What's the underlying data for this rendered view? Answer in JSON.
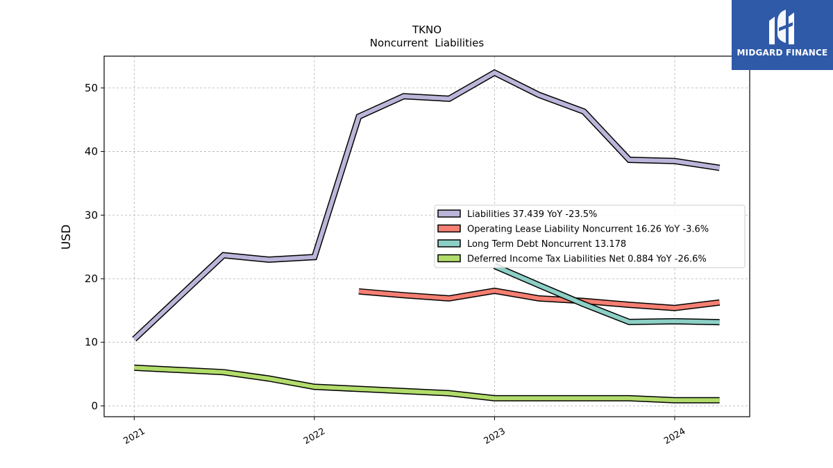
{
  "chart_data": {
    "type": "line",
    "title": "TKNO",
    "subtitle": "Noncurrent  Liabilities",
    "ylabel": "USD",
    "xlabel": "",
    "xlim": [
      "2020-11-01",
      "2024-06-01"
    ],
    "ylim": [
      -1.7,
      55
    ],
    "yticks": [
      0,
      10,
      20,
      30,
      40,
      50
    ],
    "xticks": [
      {
        "date": "2021-01-01",
        "label": "2021"
      },
      {
        "date": "2022-01-01",
        "label": "2022"
      },
      {
        "date": "2023-01-01",
        "label": "2023"
      },
      {
        "date": "2024-01-01",
        "label": "2024"
      }
    ],
    "grid": true,
    "legend_position": "center-right",
    "series": [
      {
        "name": "Liabilities",
        "legend": "Liabilities  37.439 YoY -23.5%",
        "color": "#bcb5d9",
        "points": [
          [
            "2021-01-01",
            10.5
          ],
          [
            "2021-07-01",
            23.7
          ],
          [
            "2021-10-01",
            23.0
          ],
          [
            "2022-01-01",
            23.4
          ],
          [
            "2022-04-01",
            45.5
          ],
          [
            "2022-07-01",
            48.7
          ],
          [
            "2022-10-01",
            48.3
          ],
          [
            "2023-01-01",
            52.4
          ],
          [
            "2023-04-01",
            48.9
          ],
          [
            "2023-07-01",
            46.3
          ],
          [
            "2023-10-01",
            38.7
          ],
          [
            "2024-01-01",
            38.5
          ],
          [
            "2024-04-01",
            37.439
          ]
        ]
      },
      {
        "name": "Operating Lease Liability Noncurrent",
        "legend": "Operating Lease Liability Noncurrent  16.26 YoY -3.6%",
        "color": "#f47f72",
        "points": [
          [
            "2022-04-01",
            18.0
          ],
          [
            "2022-07-01",
            17.4
          ],
          [
            "2022-10-01",
            16.9
          ],
          [
            "2023-01-01",
            18.1
          ],
          [
            "2023-04-01",
            16.9
          ],
          [
            "2023-07-01",
            16.5
          ],
          [
            "2023-10-01",
            15.9
          ],
          [
            "2024-01-01",
            15.4
          ],
          [
            "2024-04-01",
            16.26
          ]
        ]
      },
      {
        "name": "Long Term Debt Noncurrent",
        "legend": "Long Term Debt Noncurrent  13.178",
        "color": "#8ccfc5",
        "points": [
          [
            "2023-01-01",
            22.0
          ],
          [
            "2023-04-01",
            19.0
          ],
          [
            "2023-07-01",
            16.0
          ],
          [
            "2023-10-01",
            13.2
          ],
          [
            "2024-01-01",
            13.3
          ],
          [
            "2024-04-01",
            13.178
          ]
        ]
      },
      {
        "name": "Deferred Income Tax Liabilities Net",
        "legend": "Deferred Income Tax Liabilities Net  0.884 YoY -26.6%",
        "color": "#b2dc6b",
        "points": [
          [
            "2021-01-01",
            6.0
          ],
          [
            "2021-07-01",
            5.3
          ],
          [
            "2021-10-01",
            4.3
          ],
          [
            "2022-01-01",
            3.0
          ],
          [
            "2022-10-01",
            2.0
          ],
          [
            "2023-01-01",
            1.2
          ],
          [
            "2023-10-01",
            1.2
          ],
          [
            "2024-01-01",
            0.9
          ],
          [
            "2024-04-01",
            0.884
          ]
        ]
      }
    ]
  },
  "branding": {
    "logo_text": "MIDGARD FINANCE",
    "logo_color": "#2f5aa8"
  }
}
